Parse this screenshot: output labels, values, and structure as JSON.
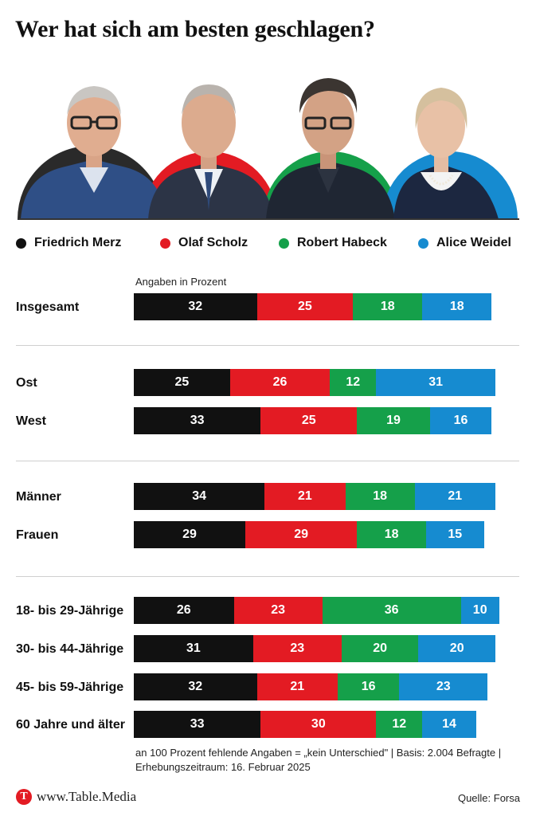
{
  "title": "Wer hat sich am besten geschlagen?",
  "unit_note": "Angaben in Prozent",
  "colors": {
    "merz": "#111111",
    "scholz": "#e31b23",
    "habeck": "#15a04a",
    "weidel": "#168bd0"
  },
  "legend": [
    {
      "label": "Friedrich Merz",
      "color": "#111111"
    },
    {
      "label": "Olaf Scholz",
      "color": "#e31b23"
    },
    {
      "label": "Robert Habeck",
      "color": "#15a04a"
    },
    {
      "label": "Alice Weidel",
      "color": "#168bd0"
    }
  ],
  "chart_data": {
    "type": "bar",
    "stacked": true,
    "orientation": "horizontal",
    "categories": [
      "Insgesamt",
      "Ost",
      "West",
      "Männer",
      "Frauen",
      "18- bis 29-Jährige",
      "30- bis 44-Jährige",
      "45- bis 59-Jährige",
      "60 Jahre und älter"
    ],
    "series": [
      {
        "name": "Friedrich Merz",
        "values": [
          32,
          25,
          33,
          34,
          29,
          26,
          31,
          32,
          33
        ]
      },
      {
        "name": "Olaf Scholz",
        "values": [
          25,
          26,
          25,
          21,
          29,
          23,
          23,
          21,
          30
        ]
      },
      {
        "name": "Robert Habeck",
        "values": [
          18,
          12,
          19,
          18,
          18,
          36,
          20,
          16,
          12
        ]
      },
      {
        "name": "Alice Weidel",
        "values": [
          18,
          31,
          16,
          21,
          15,
          10,
          20,
          23,
          14
        ]
      }
    ]
  },
  "footnote": [
    "an 100 Prozent fehlende Angaben = „kein Unterschied\" | Basis: 2.004 Befragte |",
    "Erhebungszeitraum: 16. Februar 2025"
  ],
  "brand": {
    "logo_letter": "T",
    "text": "www.Table.Media"
  },
  "source": "Quelle: Forsa"
}
